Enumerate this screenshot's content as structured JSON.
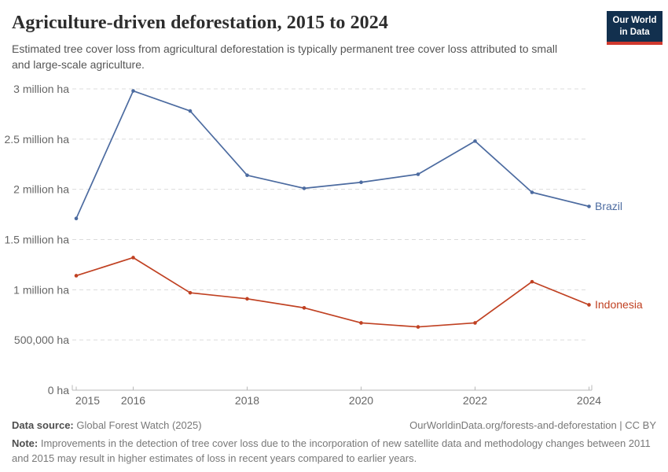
{
  "header": {
    "title": "Agriculture-driven deforestation, 2015 to 2024",
    "subtitle": "Estimated tree cover loss from agricultural deforestation is typically permanent tree cover loss attributed to small and large-scale agriculture.",
    "logo": {
      "line1": "Our World",
      "line2": "in Data",
      "bg_color": "#12304e",
      "accent_color": "#d0392e",
      "text_color": "#ffffff"
    }
  },
  "chart_data": {
    "type": "line",
    "title": "Agriculture-driven deforestation, 2015 to 2024",
    "unit": "ha",
    "x": [
      2015,
      2016,
      2017,
      2018,
      2019,
      2020,
      2021,
      2022,
      2023,
      2024
    ],
    "series": [
      {
        "name": "Brazil",
        "color": "#4c6ba0",
        "values": [
          1710000,
          2980000,
          2780000,
          2140000,
          2010000,
          2070000,
          2150000,
          2480000,
          1970000,
          1830000
        ]
      },
      {
        "name": "Indonesia",
        "color": "#c04122",
        "values": [
          1140000,
          1320000,
          970000,
          910000,
          820000,
          670000,
          630000,
          670000,
          1080000,
          850000
        ]
      }
    ],
    "ylim": [
      0,
      3000000
    ],
    "y_ticks": [
      {
        "value": 0,
        "label": "0 ha"
      },
      {
        "value": 500000,
        "label": "500,000 ha"
      },
      {
        "value": 1000000,
        "label": "1 million ha"
      },
      {
        "value": 1500000,
        "label": "1.5 million ha"
      },
      {
        "value": 2000000,
        "label": "2 million ha"
      },
      {
        "value": 2500000,
        "label": "2.5 million ha"
      },
      {
        "value": 3000000,
        "label": "3 million ha"
      }
    ],
    "x_tick_labels": [
      "2015",
      "2016",
      "2018",
      "2020",
      "2022",
      "2024"
    ],
    "grid": "horizontal-dashed",
    "legend_position": "line-end-labels",
    "colors": {
      "gridline": "#dcdcdc",
      "axis": "#b8b8b8",
      "tick_label": "#666666"
    }
  },
  "footer": {
    "source_label": "Data source:",
    "source_value": " Global Forest Watch (2025)",
    "link_text": "OurWorldinData.org/forests-and-deforestation | CC BY",
    "note_label": "Note:",
    "note_value": " Improvements in the detection of tree cover loss due to the incorporation of new satellite data and methodology changes between 2011 and 2015 may result in higher estimates of loss in recent years compared to earlier years."
  }
}
